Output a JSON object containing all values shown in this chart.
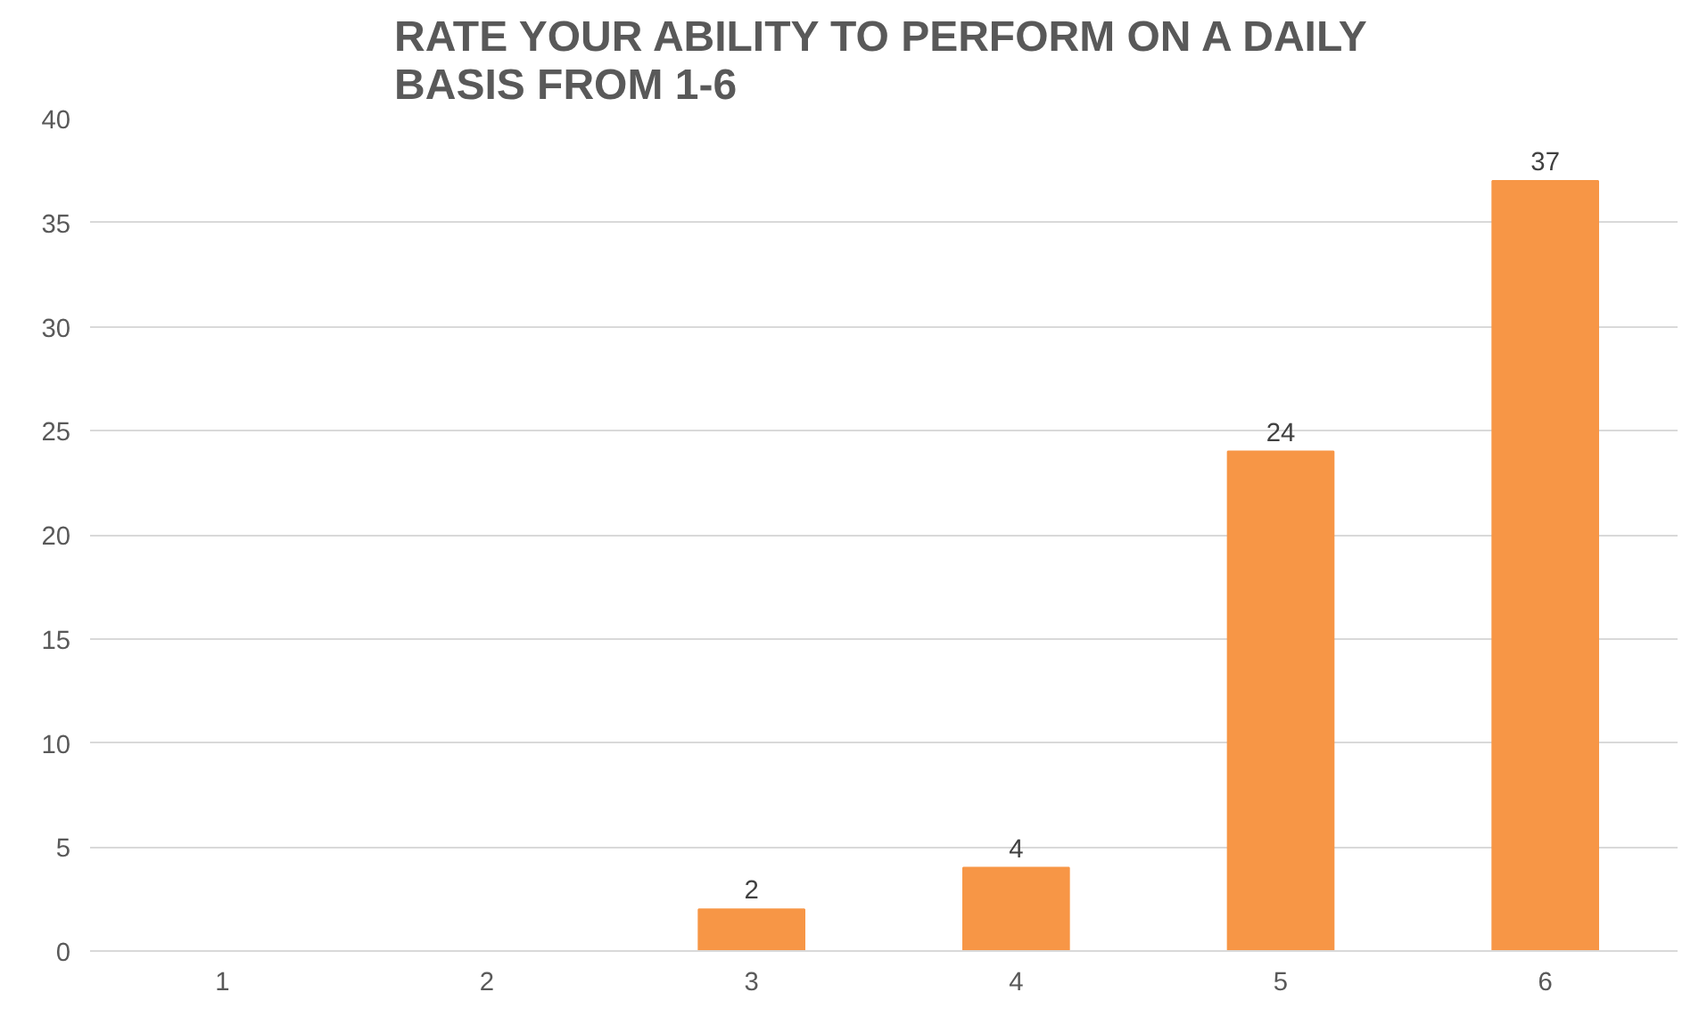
{
  "chart_data": {
    "type": "bar",
    "title": "RATE YOUR ABILITY TO PERFORM ON A DAILY BASIS FROM 1-6",
    "categories": [
      "1",
      "2",
      "3",
      "4",
      "5",
      "6"
    ],
    "values": [
      0,
      0,
      2,
      4,
      24,
      37
    ],
    "value_labels": [
      null,
      null,
      "2",
      "4",
      "24",
      "37"
    ],
    "color": "#f79646",
    "ylim": [
      0,
      40
    ],
    "yticks": [
      0,
      5,
      10,
      15,
      20,
      25,
      30,
      35,
      40
    ],
    "grid": "y"
  }
}
